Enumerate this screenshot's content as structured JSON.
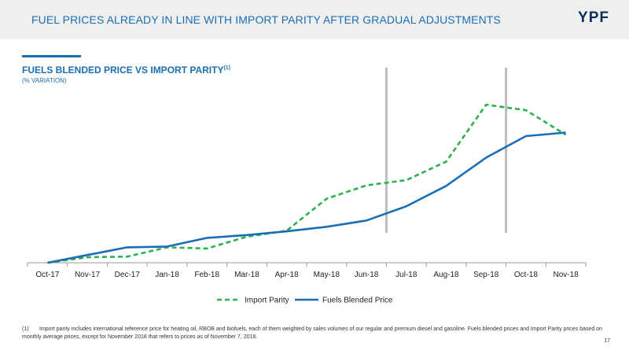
{
  "header": {
    "title": "FUEL PRICES ALREADY IN LINE WITH IMPORT PARITY AFTER GRADUAL ADJUSTMENTS",
    "logo": "YPF"
  },
  "chart_header": {
    "title": "FUELS BLENDED PRICE VS IMPORT PARITY",
    "title_sup": "(1)",
    "subtitle": "(% VARIATION)"
  },
  "chart_data": {
    "type": "line",
    "x": [
      "Oct-17",
      "Nov-17",
      "Dec-17",
      "Jan-18",
      "Feb-18",
      "Mar-18",
      "Apr-18",
      "May-18",
      "Jun-18",
      "Jul-18",
      "Aug-18",
      "Sep-18",
      "Oct-18",
      "Nov-18"
    ],
    "series": [
      {
        "name": "Import Parity",
        "values": [
          0,
          2.8,
          3.1,
          7.8,
          7.2,
          13.2,
          16.2,
          32.4,
          39.2,
          41.8,
          51.2,
          80.0,
          77.2,
          64.8
        ],
        "color": "#2bb24c",
        "style": "dashed"
      },
      {
        "name": "Fuels Blended Price",
        "values": [
          0,
          3.9,
          7.8,
          8.2,
          12.6,
          14.0,
          15.9,
          18.2,
          21.4,
          28.6,
          38.9,
          53.2,
          64.1,
          65.9
        ],
        "color": "#1a6eb5",
        "style": "solid"
      }
    ],
    "ylim": [
      0,
      90
    ],
    "grid": false,
    "legend_position": "bottom",
    "highlight_bands": [
      "Jun-18/Jul-18",
      "Sep-18/Oct-18"
    ]
  },
  "footnote": {
    "marker": "(1)",
    "text": "Import parity includes international reference price for heating oil, RBOB and biofuels, each of them weighted by sales volumes of our regular and premium diesel and gasoline. Fuels blended prices and Import Parity prices based on monthly average prices, except for November 2018 that refers to prices as of November 7, 2018."
  },
  "page_number": "17"
}
